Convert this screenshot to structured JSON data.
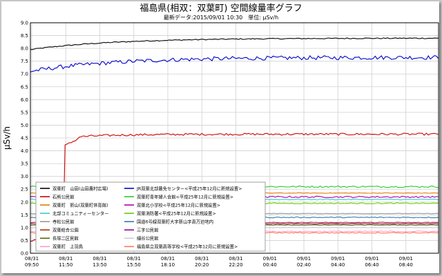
{
  "chart_data": {
    "type": "line",
    "title": "福島県(相双：双葉町) 空間線量率グラフ",
    "subtitle": "最新データ:2015/09/01 10:30　単位: μSv/h",
    "ylabel": "μSv/h",
    "xlabel": "",
    "ylim": [
      0,
      9
    ],
    "yticks": [
      "0.0",
      "0.5",
      "1.0",
      "1.5",
      "2.0",
      "2.5",
      "3.0",
      "3.5",
      "4.0",
      "4.5",
      "5.0",
      "5.5",
      "6.0",
      "6.5",
      "7.0",
      "7.5",
      "8.0",
      "8.5",
      "9.0"
    ],
    "grid": true,
    "legend_position": "lower-left",
    "x_tick_labels": [
      {
        "date": "08/31",
        "time": "09:50"
      },
      {
        "date": "08/31",
        "time": "11:50"
      },
      {
        "date": "08/31",
        "time": "13:50"
      },
      {
        "date": "08/31",
        "time": "15:50"
      },
      {
        "date": "08/31",
        "time": "18:10"
      },
      {
        "date": "08/31",
        "time": "20:20"
      },
      {
        "date": "08/31",
        "time": "22:20"
      },
      {
        "date": "09/01",
        "time": "00:40"
      },
      {
        "date": "09/01",
        "time": "02:40"
      },
      {
        "date": "09/01",
        "time": "04:40"
      },
      {
        "date": "09/01",
        "time": "06:40"
      },
      {
        "date": "09/01",
        "time": "08:40"
      }
    ],
    "series": [
      {
        "name": "双葉町　山田(山田農村広場)",
        "color": "#000000",
        "start": 7.95,
        "end": 8.4,
        "noise": 0.02,
        "shape": "rise"
      },
      {
        "name": "JR双葉北部農免センター<平成25年12月に新規設置>",
        "color": "#0000cc",
        "start": 7.1,
        "end": 7.65,
        "noise": 0.08,
        "shape": "rise"
      },
      {
        "name": "石熊公民館",
        "color": "#cc0000",
        "start": 0.5,
        "end": 4.65,
        "noise": 0.04,
        "shape": "jump"
      },
      {
        "name": "双葉町青年婦人会館<平成25年12月に新規設置>",
        "color": "#22cc22",
        "start": 2.6,
        "end": 2.6,
        "noise": 0.03,
        "shape": "flat"
      },
      {
        "name": "双葉町　新山(双葉町体育館)",
        "color": "#e07a00",
        "start": 2.35,
        "end": 2.35,
        "noise": 0.01,
        "shape": "flat"
      },
      {
        "name": "双葉北小学校<平成25年12月に新規設置>",
        "color": "#aa00aa",
        "start": 2.2,
        "end": 2.2,
        "noise": 0.03,
        "shape": "flat"
      },
      {
        "name": "北部コミュニティーセンター",
        "color": "#33cccc",
        "start": 2.1,
        "end": 2.1,
        "noise": 0.02,
        "shape": "flat"
      },
      {
        "name": "双葉消防署<平成25年12月に新規設置>",
        "color": "#66cc00",
        "start": 1.95,
        "end": 1.95,
        "noise": 0.02,
        "shape": "flat"
      },
      {
        "name": "寺松公民館",
        "color": "#999999",
        "start": 1.55,
        "end": 1.55,
        "noise": 0.01,
        "shape": "flat"
      },
      {
        "name": "国道6号線双葉町大字新山字高万迫地内",
        "color": "#3377aa",
        "start": 1.4,
        "end": 1.4,
        "noise": 0.02,
        "shape": "flat"
      },
      {
        "name": "双葉総合公園",
        "color": "#aa3300",
        "start": 1.2,
        "end": 1.2,
        "noise": 0.01,
        "shape": "flat"
      },
      {
        "name": "三字公民館",
        "color": "#990099",
        "start": 1.15,
        "end": 1.15,
        "noise": 0.01,
        "shape": "flat"
      },
      {
        "name": "長塚二区民館",
        "color": "#556600",
        "start": 1.1,
        "end": 1.1,
        "noise": 0.01,
        "shape": "flat"
      },
      {
        "name": "細谷公民館",
        "color": "#cccccc",
        "start": 1.0,
        "end": 1.0,
        "noise": 0.01,
        "shape": "flat"
      },
      {
        "name": "双葉町　上羽鳥",
        "color": "#ff99cc",
        "start": 0.85,
        "end": 0.85,
        "noise": 0.02,
        "shape": "flat"
      },
      {
        "name": "福島県立双葉高等学校<平成25年12月に新規設置>",
        "color": "#ff7755",
        "start": 0.8,
        "end": 0.8,
        "noise": 0.02,
        "shape": "flat"
      }
    ]
  }
}
